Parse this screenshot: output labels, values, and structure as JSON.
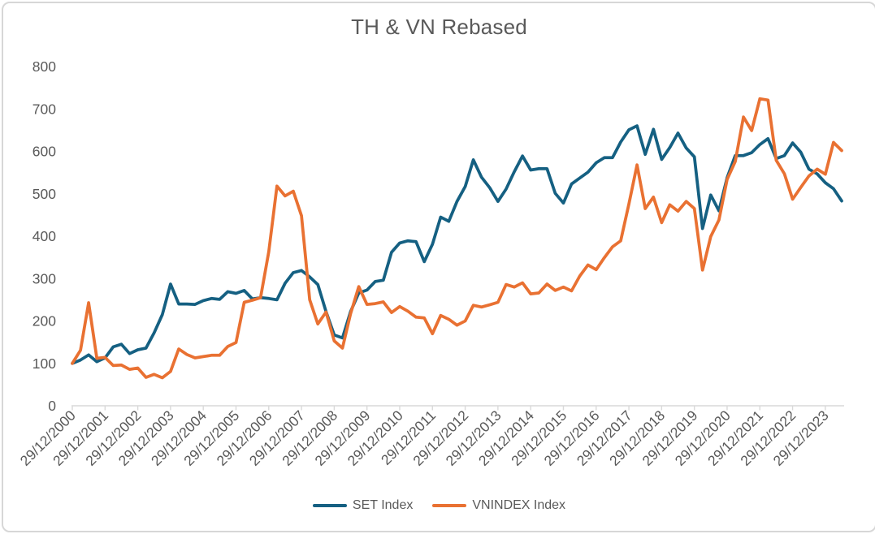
{
  "chart": {
    "title": "TH & VN Rebased",
    "legend": {
      "position": "bottom"
    }
  },
  "chart_data": {
    "type": "line",
    "title": "TH & VN Rebased",
    "xlabel": "",
    "ylabel": "",
    "ylim": [
      0,
      800
    ],
    "y_ticks": [
      0,
      100,
      200,
      300,
      400,
      500,
      600,
      700,
      800
    ],
    "grid": false,
    "legend_position": "bottom",
    "sampling": "quarterly, rebased to 100 at 29/12/2000, 95 points ending 28/06/2024",
    "points_per_labeled_tick": 4,
    "x_tick_labels": [
      "29/12/2000",
      "29/12/2001",
      "29/12/2002",
      "29/12/2003",
      "29/12/2004",
      "29/12/2005",
      "29/12/2006",
      "29/12/2007",
      "29/12/2008",
      "29/12/2009",
      "29/12/2010",
      "29/12/2011",
      "29/12/2012",
      "29/12/2013",
      "29/12/2014",
      "29/12/2015",
      "29/12/2016",
      "29/12/2017",
      "29/12/2018",
      "29/12/2019",
      "29/12/2020",
      "29/12/2021",
      "29/12/2022",
      "29/12/2023"
    ],
    "series": [
      {
        "name": "SET Index",
        "color": "#156082",
        "values": [
          100,
          108,
          120,
          104,
          113,
          139,
          145,
          123,
          132,
          136,
          172,
          215,
          287,
          240,
          240,
          239,
          248,
          253,
          251,
          269,
          265,
          272,
          252,
          255,
          253,
          250,
          289,
          314,
          319,
          304,
          286,
          222,
          167,
          160,
          222,
          266,
          273,
          293,
          296,
          362,
          384,
          389,
          387,
          340,
          381,
          445,
          435,
          482,
          517,
          580,
          539,
          514,
          482,
          511,
          552,
          589,
          556,
          559,
          559,
          501,
          478,
          523,
          537,
          551,
          573,
          585,
          585,
          622,
          651,
          660,
          593,
          652,
          581,
          609,
          643,
          608,
          587,
          418,
          497,
          460,
          538,
          590,
          590,
          597,
          616,
          630,
          583,
          590,
          620,
          598,
          558,
          547,
          526,
          512,
          483
        ]
      },
      {
        "name": "VNINDEX Index",
        "color": "#E97132",
        "values": [
          100,
          131,
          243,
          112,
          114,
          95,
          96,
          86,
          89,
          67,
          74,
          66,
          81,
          134,
          121,
          113,
          116,
          119,
          119,
          140,
          149,
          244,
          249,
          255,
          363,
          518,
          495,
          506,
          448,
          250,
          193,
          221,
          153,
          136,
          217,
          281,
          239,
          241,
          245,
          220,
          234,
          223,
          209,
          207,
          170,
          213,
          204,
          190,
          200,
          237,
          233,
          238,
          244,
          286,
          280,
          290,
          264,
          266,
          287,
          272,
          280,
          271,
          306,
          332,
          321,
          349,
          375,
          389,
          476,
          568,
          465,
          492,
          432,
          474,
          459,
          482,
          465,
          320,
          399,
          438,
          534,
          576,
          681,
          649,
          724,
          721,
          579,
          547,
          487,
          515,
          542,
          558,
          546,
          621,
          602
        ]
      }
    ],
    "style": {
      "axis_line_color": "#d9d9d9",
      "tick_label_color": "#595959",
      "title_color": "#595959",
      "legend_text_color": "#595959",
      "line_width": 3.75
    }
  }
}
